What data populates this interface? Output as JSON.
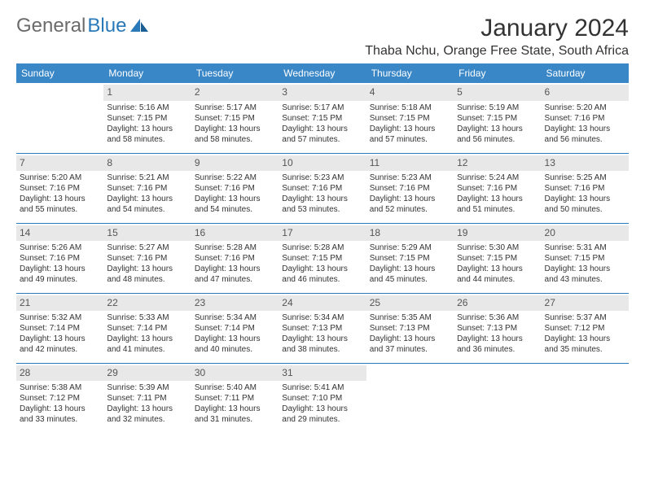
{
  "brand": {
    "name_a": "General",
    "name_b": "Blue"
  },
  "title": "January 2024",
  "location": "Thaba Nchu, Orange Free State, South Africa",
  "colors": {
    "header_bg": "#3a87c7",
    "header_fg": "#ffffff",
    "daynum_bg": "#e8e8e8",
    "row_border": "#2a79b8",
    "logo_gray": "#6b6b6b",
    "logo_blue": "#2a79b8"
  },
  "weekdays": [
    "Sunday",
    "Monday",
    "Tuesday",
    "Wednesday",
    "Thursday",
    "Friday",
    "Saturday"
  ],
  "weeks": [
    [
      null,
      {
        "n": "1",
        "sr": "Sunrise: 5:16 AM",
        "ss": "Sunset: 7:15 PM",
        "d1": "Daylight: 13 hours",
        "d2": "and 58 minutes."
      },
      {
        "n": "2",
        "sr": "Sunrise: 5:17 AM",
        "ss": "Sunset: 7:15 PM",
        "d1": "Daylight: 13 hours",
        "d2": "and 58 minutes."
      },
      {
        "n": "3",
        "sr": "Sunrise: 5:17 AM",
        "ss": "Sunset: 7:15 PM",
        "d1": "Daylight: 13 hours",
        "d2": "and 57 minutes."
      },
      {
        "n": "4",
        "sr": "Sunrise: 5:18 AM",
        "ss": "Sunset: 7:15 PM",
        "d1": "Daylight: 13 hours",
        "d2": "and 57 minutes."
      },
      {
        "n": "5",
        "sr": "Sunrise: 5:19 AM",
        "ss": "Sunset: 7:15 PM",
        "d1": "Daylight: 13 hours",
        "d2": "and 56 minutes."
      },
      {
        "n": "6",
        "sr": "Sunrise: 5:20 AM",
        "ss": "Sunset: 7:16 PM",
        "d1": "Daylight: 13 hours",
        "d2": "and 56 minutes."
      }
    ],
    [
      {
        "n": "7",
        "sr": "Sunrise: 5:20 AM",
        "ss": "Sunset: 7:16 PM",
        "d1": "Daylight: 13 hours",
        "d2": "and 55 minutes."
      },
      {
        "n": "8",
        "sr": "Sunrise: 5:21 AM",
        "ss": "Sunset: 7:16 PM",
        "d1": "Daylight: 13 hours",
        "d2": "and 54 minutes."
      },
      {
        "n": "9",
        "sr": "Sunrise: 5:22 AM",
        "ss": "Sunset: 7:16 PM",
        "d1": "Daylight: 13 hours",
        "d2": "and 54 minutes."
      },
      {
        "n": "10",
        "sr": "Sunrise: 5:23 AM",
        "ss": "Sunset: 7:16 PM",
        "d1": "Daylight: 13 hours",
        "d2": "and 53 minutes."
      },
      {
        "n": "11",
        "sr": "Sunrise: 5:23 AM",
        "ss": "Sunset: 7:16 PM",
        "d1": "Daylight: 13 hours",
        "d2": "and 52 minutes."
      },
      {
        "n": "12",
        "sr": "Sunrise: 5:24 AM",
        "ss": "Sunset: 7:16 PM",
        "d1": "Daylight: 13 hours",
        "d2": "and 51 minutes."
      },
      {
        "n": "13",
        "sr": "Sunrise: 5:25 AM",
        "ss": "Sunset: 7:16 PM",
        "d1": "Daylight: 13 hours",
        "d2": "and 50 minutes."
      }
    ],
    [
      {
        "n": "14",
        "sr": "Sunrise: 5:26 AM",
        "ss": "Sunset: 7:16 PM",
        "d1": "Daylight: 13 hours",
        "d2": "and 49 minutes."
      },
      {
        "n": "15",
        "sr": "Sunrise: 5:27 AM",
        "ss": "Sunset: 7:16 PM",
        "d1": "Daylight: 13 hours",
        "d2": "and 48 minutes."
      },
      {
        "n": "16",
        "sr": "Sunrise: 5:28 AM",
        "ss": "Sunset: 7:16 PM",
        "d1": "Daylight: 13 hours",
        "d2": "and 47 minutes."
      },
      {
        "n": "17",
        "sr": "Sunrise: 5:28 AM",
        "ss": "Sunset: 7:15 PM",
        "d1": "Daylight: 13 hours",
        "d2": "and 46 minutes."
      },
      {
        "n": "18",
        "sr": "Sunrise: 5:29 AM",
        "ss": "Sunset: 7:15 PM",
        "d1": "Daylight: 13 hours",
        "d2": "and 45 minutes."
      },
      {
        "n": "19",
        "sr": "Sunrise: 5:30 AM",
        "ss": "Sunset: 7:15 PM",
        "d1": "Daylight: 13 hours",
        "d2": "and 44 minutes."
      },
      {
        "n": "20",
        "sr": "Sunrise: 5:31 AM",
        "ss": "Sunset: 7:15 PM",
        "d1": "Daylight: 13 hours",
        "d2": "and 43 minutes."
      }
    ],
    [
      {
        "n": "21",
        "sr": "Sunrise: 5:32 AM",
        "ss": "Sunset: 7:14 PM",
        "d1": "Daylight: 13 hours",
        "d2": "and 42 minutes."
      },
      {
        "n": "22",
        "sr": "Sunrise: 5:33 AM",
        "ss": "Sunset: 7:14 PM",
        "d1": "Daylight: 13 hours",
        "d2": "and 41 minutes."
      },
      {
        "n": "23",
        "sr": "Sunrise: 5:34 AM",
        "ss": "Sunset: 7:14 PM",
        "d1": "Daylight: 13 hours",
        "d2": "and 40 minutes."
      },
      {
        "n": "24",
        "sr": "Sunrise: 5:34 AM",
        "ss": "Sunset: 7:13 PM",
        "d1": "Daylight: 13 hours",
        "d2": "and 38 minutes."
      },
      {
        "n": "25",
        "sr": "Sunrise: 5:35 AM",
        "ss": "Sunset: 7:13 PM",
        "d1": "Daylight: 13 hours",
        "d2": "and 37 minutes."
      },
      {
        "n": "26",
        "sr": "Sunrise: 5:36 AM",
        "ss": "Sunset: 7:13 PM",
        "d1": "Daylight: 13 hours",
        "d2": "and 36 minutes."
      },
      {
        "n": "27",
        "sr": "Sunrise: 5:37 AM",
        "ss": "Sunset: 7:12 PM",
        "d1": "Daylight: 13 hours",
        "d2": "and 35 minutes."
      }
    ],
    [
      {
        "n": "28",
        "sr": "Sunrise: 5:38 AM",
        "ss": "Sunset: 7:12 PM",
        "d1": "Daylight: 13 hours",
        "d2": "and 33 minutes."
      },
      {
        "n": "29",
        "sr": "Sunrise: 5:39 AM",
        "ss": "Sunset: 7:11 PM",
        "d1": "Daylight: 13 hours",
        "d2": "and 32 minutes."
      },
      {
        "n": "30",
        "sr": "Sunrise: 5:40 AM",
        "ss": "Sunset: 7:11 PM",
        "d1": "Daylight: 13 hours",
        "d2": "and 31 minutes."
      },
      {
        "n": "31",
        "sr": "Sunrise: 5:41 AM",
        "ss": "Sunset: 7:10 PM",
        "d1": "Daylight: 13 hours",
        "d2": "and 29 minutes."
      },
      null,
      null,
      null
    ]
  ]
}
